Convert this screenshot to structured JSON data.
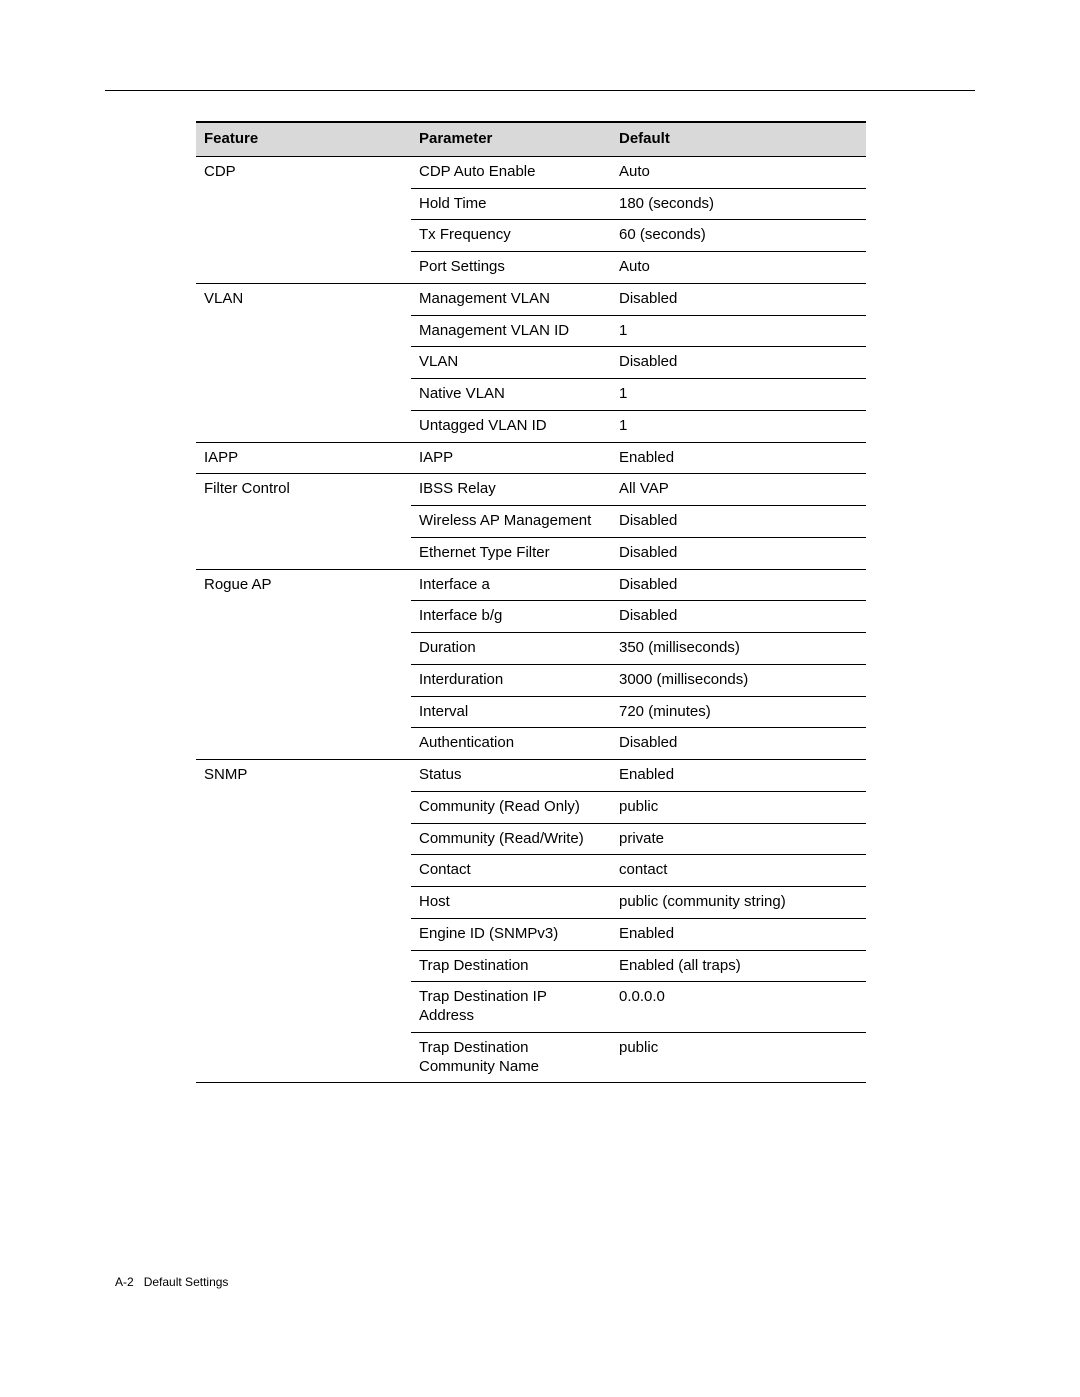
{
  "columns": {
    "feature": "Feature",
    "parameter": "Parameter",
    "default": "Default"
  },
  "rows": [
    {
      "feature": "CDP",
      "param": "CDP Auto Enable",
      "default": "Auto",
      "groupLast": false
    },
    {
      "feature": "",
      "param": "Hold Time",
      "default": "180 (seconds)",
      "groupLast": false
    },
    {
      "feature": "",
      "param": "Tx Frequency",
      "default": "60 (seconds)",
      "groupLast": false
    },
    {
      "feature": "",
      "param": "Port Settings",
      "default": "Auto",
      "groupLast": true
    },
    {
      "feature": "VLAN",
      "param": "Management VLAN",
      "default": "Disabled",
      "groupLast": false
    },
    {
      "feature": "",
      "param": "Management VLAN ID",
      "default": "1",
      "groupLast": false
    },
    {
      "feature": "",
      "param": "VLAN",
      "default": "Disabled",
      "groupLast": false
    },
    {
      "feature": "",
      "param": "Native VLAN",
      "default": "1",
      "groupLast": false
    },
    {
      "feature": "",
      "param": "Untagged VLAN ID",
      "default": "1",
      "groupLast": true
    },
    {
      "feature": "IAPP",
      "param": "IAPP",
      "default": "Enabled",
      "groupLast": true
    },
    {
      "feature": "Filter Control",
      "param": "IBSS Relay",
      "default": "All VAP",
      "groupLast": false
    },
    {
      "feature": "",
      "param": "Wireless AP Management",
      "default": "Disabled",
      "groupLast": false
    },
    {
      "feature": "",
      "param": "Ethernet Type Filter",
      "default": "Disabled",
      "groupLast": true
    },
    {
      "feature": "Rogue AP",
      "param": "Interface a",
      "default": "Disabled",
      "groupLast": false
    },
    {
      "feature": "",
      "param": "Interface b/g",
      "default": "Disabled",
      "groupLast": false
    },
    {
      "feature": "",
      "param": "Duration",
      "default": "350 (milliseconds)",
      "groupLast": false
    },
    {
      "feature": "",
      "param": "Interduration",
      "default": "3000 (milliseconds)",
      "groupLast": false
    },
    {
      "feature": "",
      "param": "Interval",
      "default": "720 (minutes)",
      "groupLast": false
    },
    {
      "feature": "",
      "param": "Authentication",
      "default": "Disabled",
      "groupLast": true
    },
    {
      "feature": "SNMP",
      "param": "Status",
      "default": "Enabled",
      "groupLast": false
    },
    {
      "feature": "",
      "param": "Community (Read Only)",
      "default": "public",
      "groupLast": false
    },
    {
      "feature": "",
      "param": "Community (Read/Write)",
      "default": "private",
      "groupLast": false
    },
    {
      "feature": "",
      "param": "Contact",
      "default": "contact",
      "groupLast": false
    },
    {
      "feature": "",
      "param": "Host",
      "default": "public (community string)",
      "groupLast": false
    },
    {
      "feature": "",
      "param": "Engine ID (SNMPv3)",
      "default": "Enabled",
      "groupLast": false
    },
    {
      "feature": "",
      "param": "Trap Destination",
      "default": "Enabled (all traps)",
      "groupLast": false
    },
    {
      "feature": "",
      "param": "Trap Destination IP Address",
      "default": "0.0.0.0",
      "groupLast": false
    },
    {
      "feature": "",
      "param": "Trap Destination Community Name",
      "default": "public",
      "groupLast": true,
      "tableLast": true
    }
  ],
  "footer": {
    "page": "A-2",
    "title": "Default Settings"
  }
}
